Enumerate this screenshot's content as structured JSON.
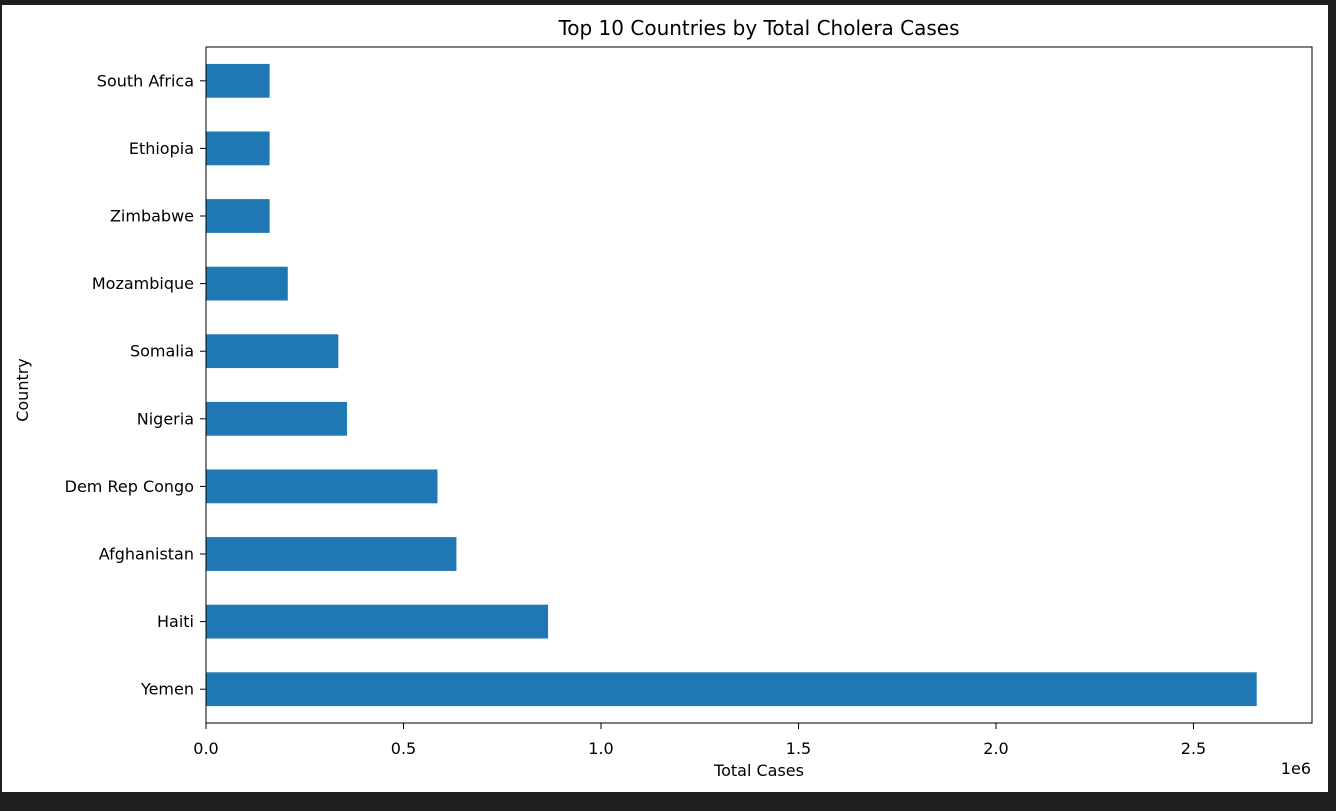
{
  "chart_data": {
    "type": "bar",
    "orientation": "horizontal",
    "title": "Top 10 Countries by Total Cholera Cases",
    "xlabel": "Total Cases",
    "ylabel": "Country",
    "x_offset_label": "1e6",
    "xlim": [
      0,
      2.8
    ],
    "x_ticks": [
      0,
      0.5,
      1.0,
      1.5,
      2.0,
      2.5
    ],
    "x_tick_labels": [
      "0.0",
      "0.5",
      "1.0",
      "1.5",
      "2.0",
      "2.5"
    ],
    "categories": [
      "Yemen",
      "Haiti",
      "Afghanistan",
      "Dem Rep Congo",
      "Nigeria",
      "Somalia",
      "Mozambique",
      "Zimbabwe",
      "Ethiopia",
      "South Africa"
    ],
    "values": [
      2.66,
      0.866,
      0.634,
      0.586,
      0.357,
      0.335,
      0.207,
      0.161,
      0.161,
      0.161
    ],
    "bar_color": "#1f77b4",
    "grid": false,
    "legend": false
  }
}
